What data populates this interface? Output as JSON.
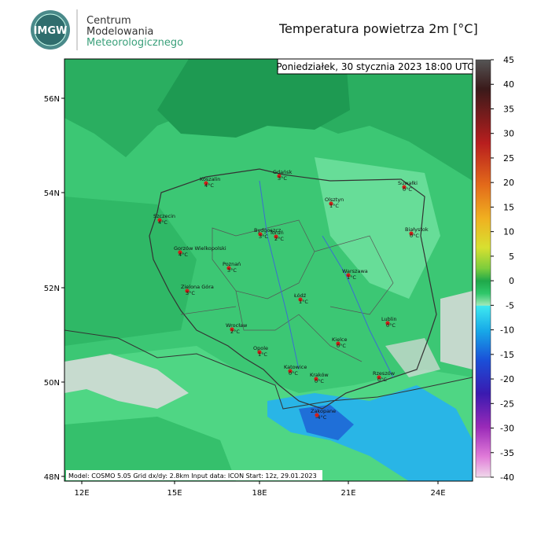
{
  "header": {
    "logo": "IMGW",
    "org": [
      "Centrum",
      "Modelowania",
      "Meteorologicznego"
    ],
    "title": "Temperatura powietrza 2m [°C]",
    "datetime": "Poniedziałek, 30 stycznia 2023 18:00 UTC"
  },
  "map": {
    "lat_labels": [
      "56N",
      "54N",
      "52N",
      "50N",
      "48N"
    ],
    "lon_labels": [
      "12E",
      "15E",
      "18E",
      "21E",
      "24E"
    ],
    "cities": [
      {
        "name": "Koszalin",
        "temp": "4°C"
      },
      {
        "name": "Gdańsk",
        "temp": "3°C"
      },
      {
        "name": "Suwałki",
        "temp": "0°C"
      },
      {
        "name": "Olsztyn",
        "temp": "1°C"
      },
      {
        "name": "Szczecin",
        "temp": "4°C"
      },
      {
        "name": "Bydgoszcz",
        "temp": "3°C"
      },
      {
        "name": "Toruń",
        "temp": "2°C"
      },
      {
        "name": "Białystok",
        "temp": "0°C"
      },
      {
        "name": "Gorzów Wielkopolski",
        "temp": "4°C"
      },
      {
        "name": "Poznań",
        "temp": "3°C"
      },
      {
        "name": "Warszawa",
        "temp": "1°C"
      },
      {
        "name": "Zielona Góra",
        "temp": "3°C"
      },
      {
        "name": "Łódź",
        "temp": "1°C"
      },
      {
        "name": "Lublin",
        "temp": "0°C"
      },
      {
        "name": "Wrocław",
        "temp": "2°C"
      },
      {
        "name": "Kielce",
        "temp": "0°C"
      },
      {
        "name": "Opole",
        "temp": "1°C"
      },
      {
        "name": "Katowice",
        "temp": "0°C"
      },
      {
        "name": "Kraków",
        "temp": "0°C"
      },
      {
        "name": "Rzeszów",
        "temp": "0°C"
      },
      {
        "name": "Zakopane",
        "temp": "-4°C"
      }
    ],
    "footer": "Model: COSMO 5.05  Grid dx/dy: 2.8km  Input data: ICON  Start: 12z, 29.01.2023"
  },
  "colorbar": {
    "ticks": [
      45,
      40,
      35,
      30,
      25,
      20,
      15,
      10,
      5,
      0,
      -5,
      -10,
      -15,
      -20,
      -25,
      -30,
      -35,
      -40
    ]
  }
}
